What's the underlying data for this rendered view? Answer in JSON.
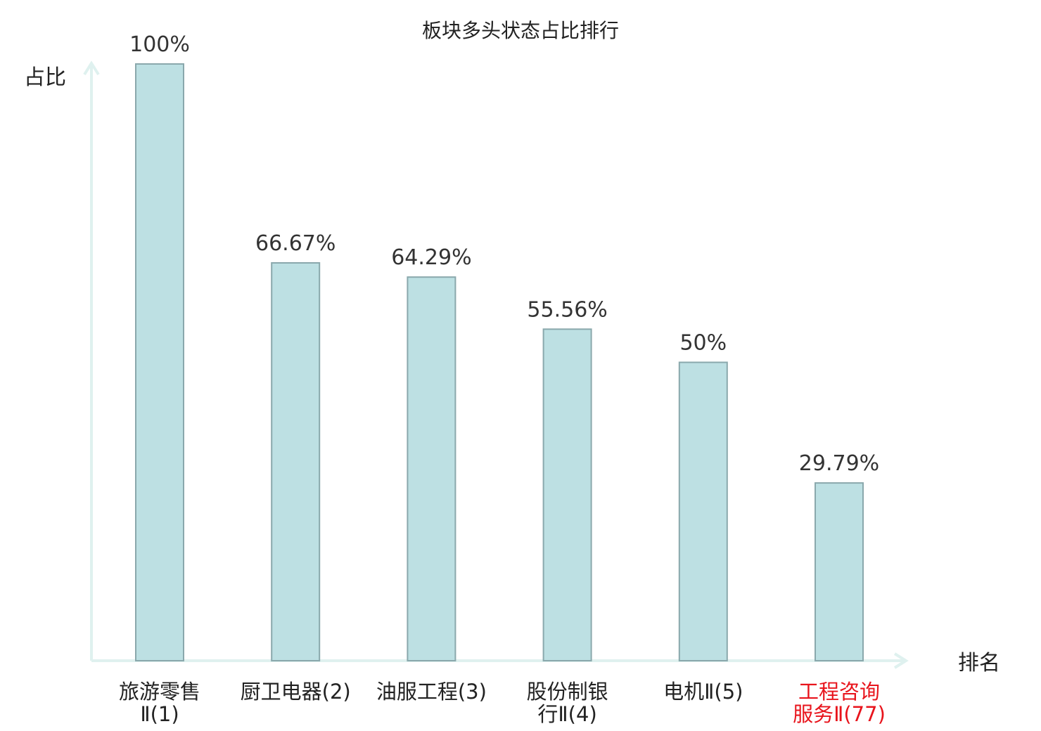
{
  "chart_data": {
    "type": "bar",
    "title": "板块多头状态占比排行",
    "xlabel": "排名",
    "ylabel": "占比",
    "ylim": [
      0,
      100
    ],
    "grid": false,
    "legend": "none",
    "categories": [
      {
        "lines": [
          "旅游零售",
          "Ⅱ(1)"
        ],
        "highlight": false
      },
      {
        "lines": [
          "厨卫电器(2)"
        ],
        "highlight": false
      },
      {
        "lines": [
          "油服工程(3)"
        ],
        "highlight": false
      },
      {
        "lines": [
          "股份制银",
          "行Ⅱ(4)"
        ],
        "highlight": false
      },
      {
        "lines": [
          "电机Ⅱ(5)"
        ],
        "highlight": false
      },
      {
        "lines": [
          "工程咨询",
          "服务Ⅱ(77)"
        ],
        "highlight": true
      }
    ],
    "values": [
      100,
      66.67,
      64.29,
      55.56,
      50,
      29.79
    ],
    "value_labels": [
      "100%",
      "66.67%",
      "64.29%",
      "55.56%",
      "50%",
      "29.79%"
    ],
    "colors": {
      "bar_fill": "#bde0e3",
      "bar_stroke": "#8aa8ac",
      "axis": "#dff1ef",
      "text": "#222222",
      "value_text": "#333333",
      "highlight": "#e8141c"
    }
  }
}
